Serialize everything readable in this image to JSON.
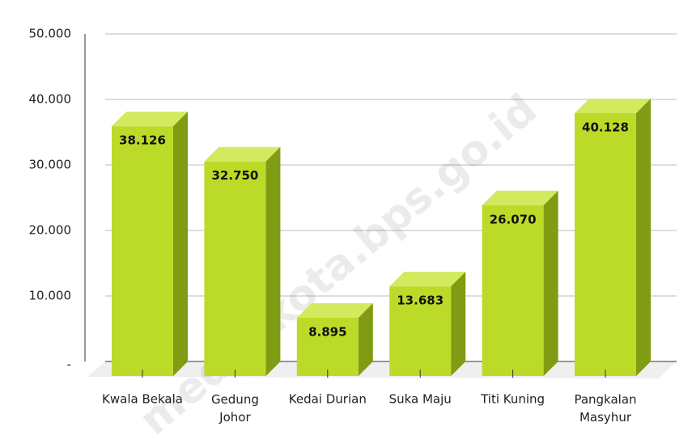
{
  "chart_data": {
    "type": "bar3d",
    "categories": [
      "Kwala Bekala",
      "Gedung Johor",
      "Kedai Durian",
      "Suka Maju",
      "Titi Kuning",
      "Pangkalan Masyhur"
    ],
    "values": [
      38126,
      32750,
      8895,
      13683,
      26070,
      40128
    ],
    "value_labels": [
      "38.126",
      "32.750",
      "8.895",
      "13.683",
      "26.070",
      "40.128"
    ],
    "color": "#bcdb28",
    "ylim": [
      0,
      50000
    ],
    "yticks": [
      {
        "value": 0,
        "label": "-"
      },
      {
        "value": 10000,
        "label": "10.000"
      },
      {
        "value": 20000,
        "label": "20.000"
      },
      {
        "value": 30000,
        "label": "30.000"
      },
      {
        "value": 40000,
        "label": "40.000"
      },
      {
        "value": 50000,
        "label": "50.000"
      }
    ],
    "grid": true,
    "watermark": "medankota.bps.go.id"
  }
}
